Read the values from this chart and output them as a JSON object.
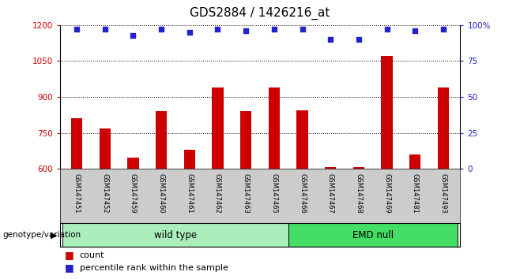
{
  "title": "GDS2884 / 1426216_at",
  "samples": [
    "GSM147451",
    "GSM147452",
    "GSM147459",
    "GSM147460",
    "GSM147461",
    "GSM147462",
    "GSM147463",
    "GSM147465",
    "GSM147466",
    "GSM147467",
    "GSM147468",
    "GSM147469",
    "GSM147481",
    "GSM147493"
  ],
  "counts": [
    810,
    770,
    645,
    840,
    680,
    940,
    840,
    940,
    845,
    608,
    608,
    1070,
    660,
    940
  ],
  "percentile": [
    97,
    97,
    93,
    97,
    95,
    97,
    96,
    97,
    97,
    90,
    90,
    97,
    96,
    97
  ],
  "ylim_left": [
    600,
    1200
  ],
  "ylim_right": [
    0,
    100
  ],
  "yticks_left": [
    600,
    750,
    900,
    1050,
    1200
  ],
  "yticks_right": [
    0,
    25,
    50,
    75,
    100
  ],
  "groups": [
    {
      "label": "wild type",
      "start": 0,
      "end": 7,
      "color": "#AAEEBB"
    },
    {
      "label": "EMD null",
      "start": 8,
      "end": 13,
      "color": "#44DD66"
    }
  ],
  "bar_color": "#CC0000",
  "dot_color": "#2222CC",
  "bg_color": "#FFFFFF",
  "left_tick_color": "#CC0000",
  "right_tick_color": "#2222CC",
  "xlabel_area_color": "#CCCCCC",
  "genotype_label": "genotype/variation",
  "legend_count_label": "count",
  "legend_pct_label": "percentile rank within the sample",
  "title_fontsize": 11,
  "bar_width": 0.4
}
